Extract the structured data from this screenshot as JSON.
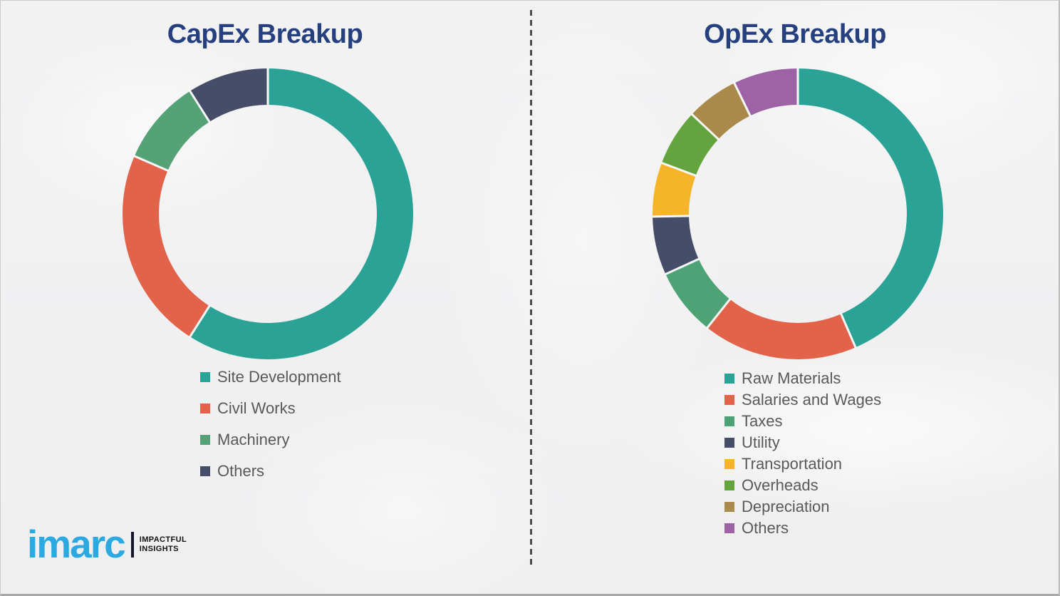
{
  "chart_data": [
    {
      "type": "pie",
      "subtype": "donut",
      "title": "CapEx Breakup",
      "legend_position": "below-left",
      "data_labels": "none",
      "segments": [
        {
          "label": "Site Development",
          "value_pct": 59.0,
          "color": "#2AA295"
        },
        {
          "label": "Civil Works",
          "value_pct": 22.5,
          "color": "#E2634A"
        },
        {
          "label": "Machinery",
          "value_pct": 9.5,
          "color": "#56A277"
        },
        {
          "label": "Others",
          "value_pct": 9.0,
          "color": "#454D68"
        }
      ]
    },
    {
      "type": "pie",
      "subtype": "donut",
      "title": "OpEx Breakup",
      "legend_position": "below-left",
      "data_labels": "none",
      "segments": [
        {
          "label": "Raw Materials",
          "value_pct": 43.5,
          "color": "#2AA295"
        },
        {
          "label": "Salaries and Wages",
          "value_pct": 17.2,
          "color": "#E2634A"
        },
        {
          "label": "Taxes",
          "value_pct": 7.5,
          "color": "#4EA376"
        },
        {
          "label": "Utility",
          "value_pct": 6.5,
          "color": "#454D68"
        },
        {
          "label": "Transportation",
          "value_pct": 6.0,
          "color": "#F6B42B"
        },
        {
          "label": "Overheads",
          "value_pct": 6.3,
          "color": "#64A43E"
        },
        {
          "label": "Depreciation",
          "value_pct": 5.8,
          "color": "#A98A4B"
        },
        {
          "label": "Others",
          "value_pct": 7.2,
          "color": "#9D63A4"
        }
      ]
    }
  ],
  "branding": {
    "logo_text": "imarc",
    "tagline_line1": "IMPACTFUL",
    "tagline_line2": "INSIGHTS",
    "logo_color": "#2CA9E1"
  },
  "style": {
    "title_color": "#26407F",
    "legend_text_color": "#595959",
    "background_color": "#F1F1F2"
  }
}
